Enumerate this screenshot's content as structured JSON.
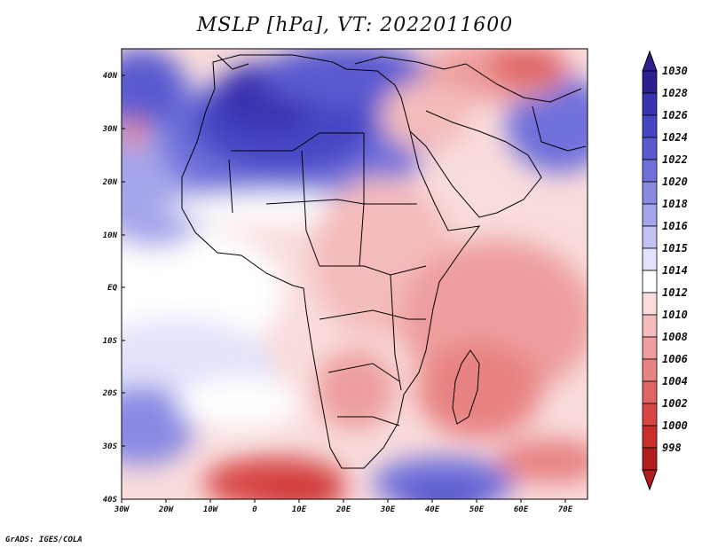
{
  "title": "MSLP [hPa], VT: 2022011600",
  "footer": "GrADS: IGES/COLA",
  "lat_labels": [
    "40N",
    "30N",
    "20N",
    "10N",
    "EQ",
    "10S",
    "20S",
    "30S",
    "40S"
  ],
  "lon_labels": [
    "30W",
    "20W",
    "10W",
    "0",
    "10E",
    "20E",
    "30E",
    "40E",
    "50E",
    "60E",
    "70E"
  ],
  "colorbar": {
    "levels": [
      "1030",
      "1028",
      "1026",
      "1024",
      "1022",
      "1020",
      "1018",
      "1016",
      "1015",
      "1014",
      "1012",
      "1010",
      "1008",
      "1006",
      "1004",
      "1002",
      "1000",
      "998"
    ],
    "colors": [
      "#2c1e8f",
      "#3a33b0",
      "#4646c4",
      "#5a5ad0",
      "#7070db",
      "#8a8ae3",
      "#a5a5eb",
      "#c3c3f3",
      "#e2e2fa",
      "#ffffff",
      "#f9dcdc",
      "#f4bcbc",
      "#ee9e9e",
      "#e88282",
      "#e06464",
      "#d84646",
      "#cc2e2e",
      "#b21e1e"
    ]
  },
  "map": {
    "projection": "latlon",
    "lon_range": [
      -30,
      75
    ],
    "lat_range": [
      -40,
      45
    ],
    "variable": "Mean sea level pressure",
    "units": "hPa"
  }
}
